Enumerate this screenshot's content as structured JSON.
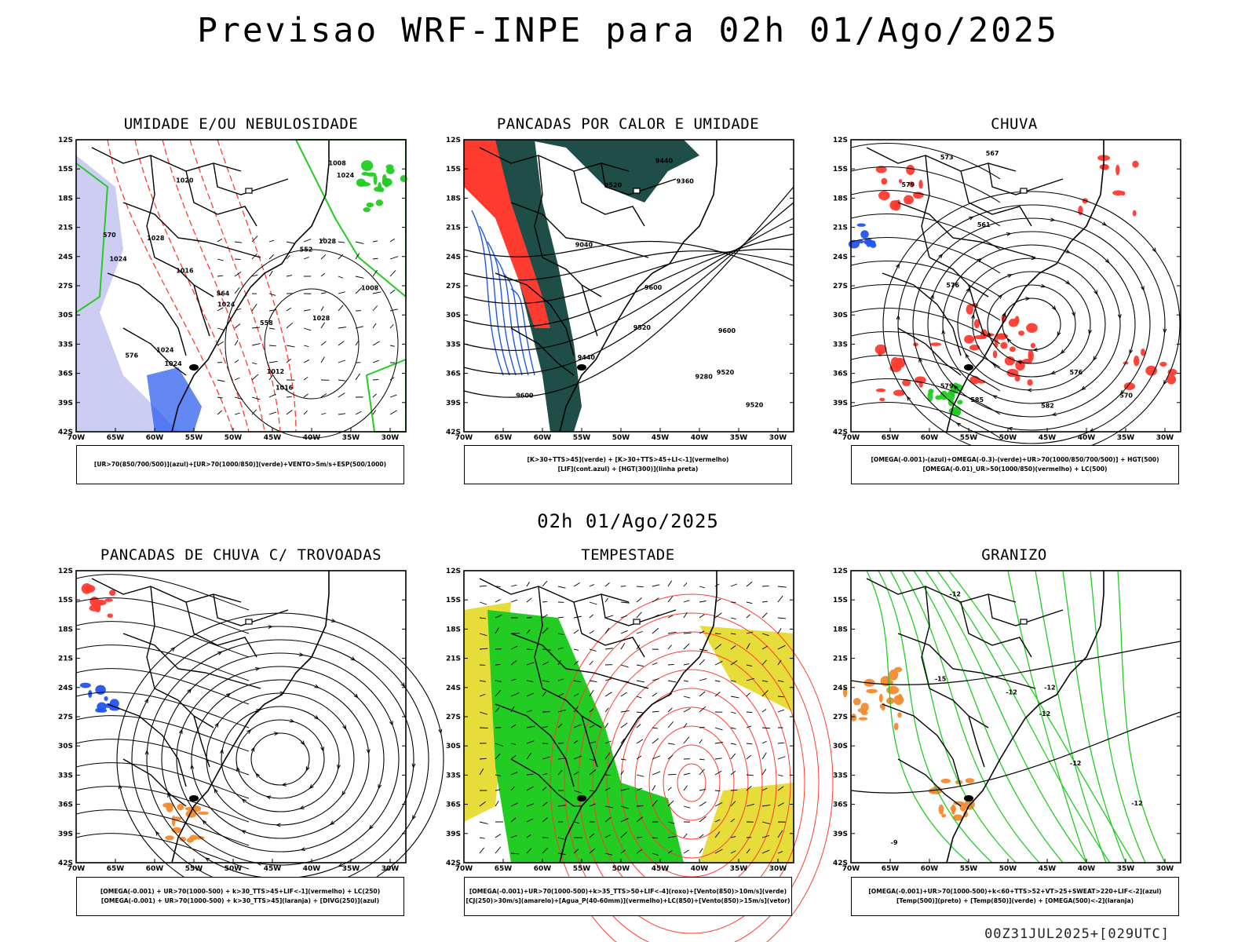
{
  "title": "Previsao WRF-INPE  para 02h 01/Ago/2025",
  "middle_date": "02h 01/Ago/2025",
  "footer": "00Z31JUL2025+[029UTC]",
  "axes": {
    "lat_ticks": [
      "12S",
      "15S",
      "18S",
      "21S",
      "24S",
      "27S",
      "30S",
      "33S",
      "36S",
      "39S",
      "42S"
    ],
    "lon_ticks": [
      "70W",
      "65W",
      "60W",
      "55W",
      "50W",
      "45W",
      "40W",
      "35W",
      "30W"
    ]
  },
  "colors": {
    "red": "#ff3b30",
    "green": "#22cc22",
    "blue": "#2255ee",
    "lavender": "#b8b8ee",
    "dark_teal": "#1f4d48",
    "yellow": "#e6dc3a",
    "orange": "#f28a2e"
  },
  "panels": [
    {
      "id": "umidade",
      "title": "UMIDADE E/OU NEBULOSIDADE",
      "caption": [
        "[UR>70(850/700/500)](azul)+[UR>70(1000/850)](verde)+VENTO>5m/s+ESP(500/1000)"
      ],
      "labels": [
        "1016",
        "1020",
        "1024",
        "1028",
        "1028",
        "1012",
        "1008",
        "1016",
        "1024",
        "1024",
        "576",
        "570",
        "564",
        "558",
        "552",
        "1008",
        "1024",
        "1024",
        "1028"
      ]
    },
    {
      "id": "pancadas_calor",
      "title": "PANCADAS POR CALOR E UMIDADE",
      "caption": [
        "[K>30+TTS>45](verde) + [K>30+TTS>45+LI<-1](vermelho)",
        "[LIF](cont.azul) + [HGT(300)](linha preta)"
      ],
      "labels": [
        "9600",
        "9600",
        "9600",
        "9520",
        "9520",
        "9440",
        "9520",
        "9360",
        "9280",
        "9440",
        "9520",
        "9040"
      ]
    },
    {
      "id": "chuva",
      "title": "CHUVA",
      "caption": [
        "[OMEGA(-0.001)-(azul)+OMEGA(-0.3)-(verde)+UR>70(1000/850/700/500)] + HGT(500)",
        "[OMEGA(-0.01)_UR>50(1000/850)(vermelho) + LC(500)"
      ],
      "labels": [
        "585",
        "582",
        "579",
        "576",
        "573",
        "579",
        "576",
        "570",
        "567",
        "561"
      ]
    },
    {
      "id": "trovoadas",
      "title": "PANCADAS DE CHUVA C/ TROVOADAS",
      "caption": [
        "[OMEGA(-0.001) + UR>70(1000-500) + k>30_TTS>45+LIF<-1](vermelho) + LC(250)",
        "[OMEGA(-0.001) + UR>70(1000-500) + k>30_TTS>45](laranja) + [DIVG(250)](azul)"
      ],
      "labels": []
    },
    {
      "id": "tempestade",
      "title": "TEMPESTADE",
      "caption": [
        "[OMEGA(-0.001)+UR>70(1000-500)+k>35_TTS>50+LIF<-4](roxo)+[Vento(850)>10m/s](verde)",
        "[CJ(250)>30m/s](amarelo)+[Agua_P(40-60mm)](vermelho)+LC(850)+[Vento(850)>15m/s](vetor)"
      ],
      "labels": []
    },
    {
      "id": "granizo",
      "title": "GRANIZO",
      "caption": [
        "[OMEGA(-0.001)+UR>70(1000-500)+k<60+TTS>52+VT>25+SWEAT>220+LIF<-2](azul)",
        "[Temp(500)](preto) + [Temp(850)](verde) + [OMEGA(500)<-2](laranja)"
      ],
      "labels": [
        "-9",
        "-12",
        "-12",
        "-15",
        "-12",
        "-12",
        "-12",
        "-12"
      ]
    }
  ]
}
